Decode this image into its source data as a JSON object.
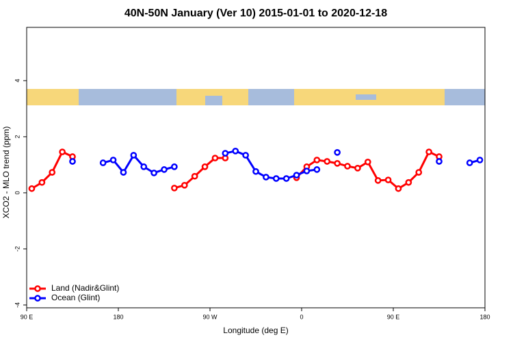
{
  "chart_data": {
    "type": "line",
    "title": "40N-50N January (Ver 10)   2015-01-01 to 2020-12-18",
    "x_label": "Longitude (deg E)",
    "y_label": "XCO2 - MLO trend (ppm)",
    "x": [
      95,
      105,
      115,
      125,
      135,
      145,
      155,
      165,
      175,
      185,
      195,
      205,
      215,
      225,
      235,
      245,
      255,
      265,
      275,
      285,
      295,
      305,
      315,
      325,
      335,
      345,
      355,
      365,
      375,
      385,
      395,
      405,
      415,
      425,
      435,
      445,
      455,
      465,
      475,
      485,
      495,
      505,
      515,
      525,
      535
    ],
    "series": [
      {
        "name": "Land (Nadir&Glint)",
        "color": "#ff0000",
        "values": [
          0.15,
          0.37,
          0.73,
          1.46,
          1.29,
          null,
          null,
          null,
          null,
          null,
          null,
          null,
          null,
          null,
          0.17,
          0.27,
          0.59,
          0.93,
          1.24,
          1.24,
          null,
          null,
          null,
          null,
          null,
          null,
          0.54,
          0.93,
          1.17,
          1.12,
          1.05,
          0.95,
          0.88,
          1.1,
          0.44,
          0.46,
          0.15,
          0.37,
          0.73,
          1.46,
          1.29,
          null,
          null,
          null,
          null
        ]
      },
      {
        "name": "Ocean (Glint)",
        "color": "#0000ff",
        "values": [
          null,
          null,
          null,
          null,
          1.12,
          null,
          null,
          1.07,
          1.17,
          0.73,
          1.34,
          0.93,
          0.71,
          0.83,
          0.93,
          null,
          null,
          null,
          null,
          1.41,
          1.49,
          1.34,
          0.76,
          0.56,
          0.51,
          0.51,
          0.63,
          0.78,
          0.83,
          null,
          1.44,
          null,
          null,
          null,
          null,
          null,
          null,
          null,
          null,
          null,
          1.12,
          null,
          null,
          1.07,
          1.17
        ]
      }
    ],
    "xlim": [
      90,
      540
    ],
    "xticks": [
      {
        "value": 90,
        "label": "90 E"
      },
      180,
      {
        "value": 270,
        "label": "90 W"
      },
      {
        "value": 360,
        "label": "0"
      },
      {
        "value": 450,
        "label": "90 E"
      },
      {
        "value": 540,
        "label": "180"
      }
    ],
    "ylim": [
      -4.1,
      5.9
    ],
    "yticks": [
      -4,
      -2,
      0,
      2,
      4
    ],
    "legend": "bottom-left"
  }
}
